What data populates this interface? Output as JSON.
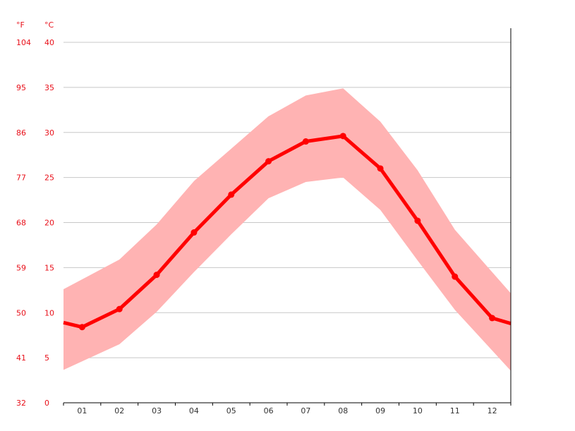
{
  "chart_data": {
    "type": "area",
    "categories": [
      "01",
      "02",
      "03",
      "04",
      "05",
      "06",
      "07",
      "08",
      "09",
      "10",
      "11",
      "12"
    ],
    "y_unit_f": "°F",
    "y_unit_c": "°C",
    "y_ticks_c": [
      0,
      5,
      10,
      15,
      20,
      25,
      30,
      35,
      40
    ],
    "y_ticks_f": [
      32,
      41,
      50,
      59,
      68,
      77,
      86,
      95,
      104
    ],
    "ylim": [
      0,
      40
    ],
    "grid": true,
    "series": [
      {
        "values": [
          8.4,
          10.4,
          14.2,
          18.9,
          23.1,
          26.8,
          29.0,
          29.6,
          26.0,
          20.2,
          14.0,
          9.4
        ]
      },
      {
        "values": [
          13.7,
          15.9,
          19.8,
          24.6,
          28.2,
          31.8,
          34.1,
          34.9,
          31.2,
          25.8,
          19.2,
          14.5
        ]
      },
      {
        "values": [
          4.6,
          6.5,
          10.1,
          14.5,
          18.7,
          22.7,
          24.5,
          25.0,
          21.4,
          15.8,
          10.3,
          5.8
        ]
      }
    ],
    "colors": {
      "line": "#ff0000",
      "band": "#ffb3b3",
      "grid": "#c8c8c8",
      "axis_text": "#e8101a"
    }
  }
}
